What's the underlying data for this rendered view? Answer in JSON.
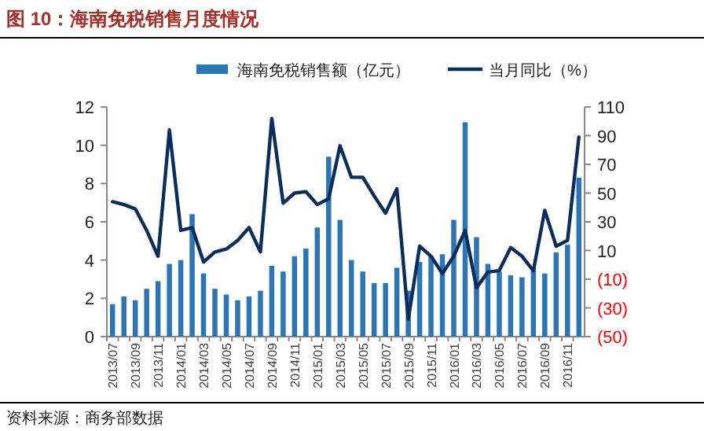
{
  "chart_data": {
    "type": "bar",
    "title": "图 10：海南免税销售月度情况",
    "categories": [
      "2013/07",
      null,
      "2013/09",
      null,
      "2013/11",
      null,
      "2014/01",
      null,
      "2014/03",
      null,
      "2014/05",
      null,
      "2014/07",
      null,
      "2014/09",
      null,
      "2014/11",
      null,
      "2015/01",
      null,
      "2015/03",
      null,
      "2015/05",
      null,
      "2015/07",
      null,
      "2015/09",
      null,
      "2015/11",
      null,
      "2016/01",
      null,
      "2016/03",
      null,
      "2016/05",
      null,
      "2016/07",
      null,
      "2016/09",
      null,
      "2016/11",
      null
    ],
    "series": [
      {
        "name": "海南免税销售额（亿元）",
        "color": "#2e75b6",
        "values": [
          1.7,
          2.1,
          1.9,
          2.5,
          2.9,
          3.8,
          4.0,
          6.4,
          3.3,
          2.5,
          2.2,
          1.9,
          2.1,
          2.4,
          3.7,
          3.4,
          4.2,
          4.6,
          5.7,
          9.4,
          6.1,
          4.0,
          3.4,
          2.8,
          2.8,
          3.6,
          2.4,
          3.9,
          4.2,
          4.3,
          6.1,
          11.2,
          5.2,
          3.8,
          3.4,
          3.2,
          3.1,
          3.6,
          3.3,
          4.4,
          4.8,
          8.3
        ]
      },
      {
        "name": "当月同比（%）",
        "type": "line",
        "axis": "y2",
        "color": "#0b2d5b",
        "values": [
          44,
          42,
          39,
          24,
          6,
          94,
          24,
          26,
          2,
          9,
          11,
          17,
          26,
          9,
          102,
          43,
          50,
          51,
          42,
          46,
          83,
          61,
          61,
          48,
          36,
          53,
          -38,
          13,
          6,
          -6,
          6,
          24,
          -16,
          -5,
          -4,
          12,
          6,
          -4,
          38,
          13,
          17,
          89
        ]
      }
    ],
    "ylim": [
      0,
      12
    ],
    "yticks": [
      0,
      2,
      4,
      6,
      8,
      10,
      12
    ],
    "y2lim": [
      -50,
      110
    ],
    "y2ticks": [
      {
        "value": -50,
        "label": "(50)"
      },
      {
        "value": -30,
        "label": "(30)"
      },
      {
        "value": -10,
        "label": "(10)"
      },
      10,
      30,
      50,
      70,
      90,
      110
    ],
    "legend": "top",
    "annotations": [
      "资料来源：商务部数据"
    ]
  }
}
